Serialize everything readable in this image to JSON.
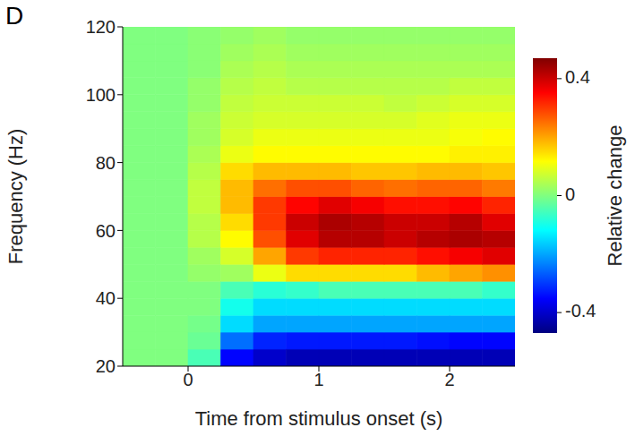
{
  "chart_data": {
    "type": "heatmap",
    "panel_label": "D",
    "x_label": "Time from stimulus onset (s)",
    "y_label": "Frequency (Hz)",
    "xlim": [
      -0.5,
      2.5
    ],
    "xticks": [
      0,
      1,
      2
    ],
    "ylim": [
      20,
      120
    ],
    "yticks": [
      20,
      40,
      60,
      80,
      100,
      120
    ],
    "grid": false,
    "x_edges": [
      -0.5,
      -0.25,
      0,
      0.25,
      0.5,
      0.75,
      1,
      1.25,
      1.5,
      1.75,
      2,
      2.25,
      2.5
    ],
    "y_edges": [
      20,
      25,
      30,
      35,
      40,
      45,
      50,
      55,
      60,
      65,
      70,
      75,
      80,
      85,
      90,
      95,
      100,
      105,
      110,
      115,
      120
    ],
    "cells": [
      [
        0,
        0,
        -0.05,
        -0.35,
        -0.4,
        -0.42,
        -0.42,
        -0.42,
        -0.42,
        -0.42,
        -0.42,
        -0.42
      ],
      [
        0,
        0,
        -0.02,
        -0.25,
        -0.32,
        -0.33,
        -0.33,
        -0.33,
        -0.33,
        -0.34,
        -0.35,
        -0.35
      ],
      [
        0,
        0,
        -0.01,
        -0.15,
        -0.2,
        -0.2,
        -0.2,
        -0.2,
        -0.2,
        -0.2,
        -0.2,
        -0.2
      ],
      [
        0,
        0,
        0,
        -0.1,
        -0.15,
        -0.15,
        -0.15,
        -0.15,
        -0.15,
        -0.15,
        -0.15,
        -0.15
      ],
      [
        0,
        0,
        0,
        -0.05,
        -0.08,
        -0.07,
        -0.05,
        -0.05,
        -0.05,
        -0.05,
        -0.05,
        -0.07
      ],
      [
        0,
        0,
        0.02,
        0.03,
        0.1,
        0.15,
        0.15,
        0.15,
        0.15,
        0.18,
        0.2,
        0.22
      ],
      [
        0,
        0,
        0.03,
        0.08,
        0.2,
        0.3,
        0.32,
        0.32,
        0.32,
        0.34,
        0.36,
        0.38
      ],
      [
        0,
        0,
        0.05,
        0.12,
        0.28,
        0.38,
        0.42,
        0.42,
        0.4,
        0.42,
        0.43,
        0.42
      ],
      [
        0,
        0,
        0.05,
        0.15,
        0.3,
        0.4,
        0.43,
        0.42,
        0.4,
        0.4,
        0.42,
        0.38
      ],
      [
        0,
        0,
        0.06,
        0.18,
        0.3,
        0.35,
        0.38,
        0.36,
        0.34,
        0.34,
        0.35,
        0.32
      ],
      [
        0,
        0,
        0.06,
        0.18,
        0.25,
        0.28,
        0.28,
        0.26,
        0.25,
        0.26,
        0.26,
        0.24
      ],
      [
        0,
        0,
        0.05,
        0.15,
        0.18,
        0.18,
        0.18,
        0.17,
        0.17,
        0.18,
        0.18,
        0.17
      ],
      [
        0,
        0,
        0.04,
        0.1,
        0.12,
        0.12,
        0.12,
        0.12,
        0.12,
        0.12,
        0.13,
        0.13
      ],
      [
        0,
        0,
        0.03,
        0.08,
        0.1,
        0.1,
        0.1,
        0.1,
        0.1,
        0.1,
        0.11,
        0.12
      ],
      [
        0,
        0,
        0.03,
        0.07,
        0.08,
        0.08,
        0.08,
        0.08,
        0.08,
        0.09,
        0.1,
        0.1
      ],
      [
        0,
        0,
        0.02,
        0.06,
        0.07,
        0.07,
        0.07,
        0.07,
        0.06,
        0.07,
        0.08,
        0.08
      ],
      [
        0,
        0,
        0.02,
        0.05,
        0.06,
        0.05,
        0.05,
        0.05,
        0.05,
        0.05,
        0.06,
        0.06
      ],
      [
        0,
        0,
        0.01,
        0.04,
        0.05,
        0.04,
        0.04,
        0.04,
        0.04,
        0.04,
        0.04,
        0.04
      ],
      [
        0,
        0,
        0.01,
        0.03,
        0.04,
        0.03,
        0.03,
        0.03,
        0.03,
        0.03,
        0.03,
        0.03
      ],
      [
        0,
        0,
        0.01,
        0.02,
        0.03,
        0.02,
        0.02,
        0.02,
        0.02,
        0.02,
        0.02,
        0.02
      ]
    ],
    "colorbar": {
      "label": "Relative change",
      "range": [
        -0.47,
        0.47
      ],
      "ticks": [
        -0.4,
        0,
        0.4
      ]
    }
  }
}
